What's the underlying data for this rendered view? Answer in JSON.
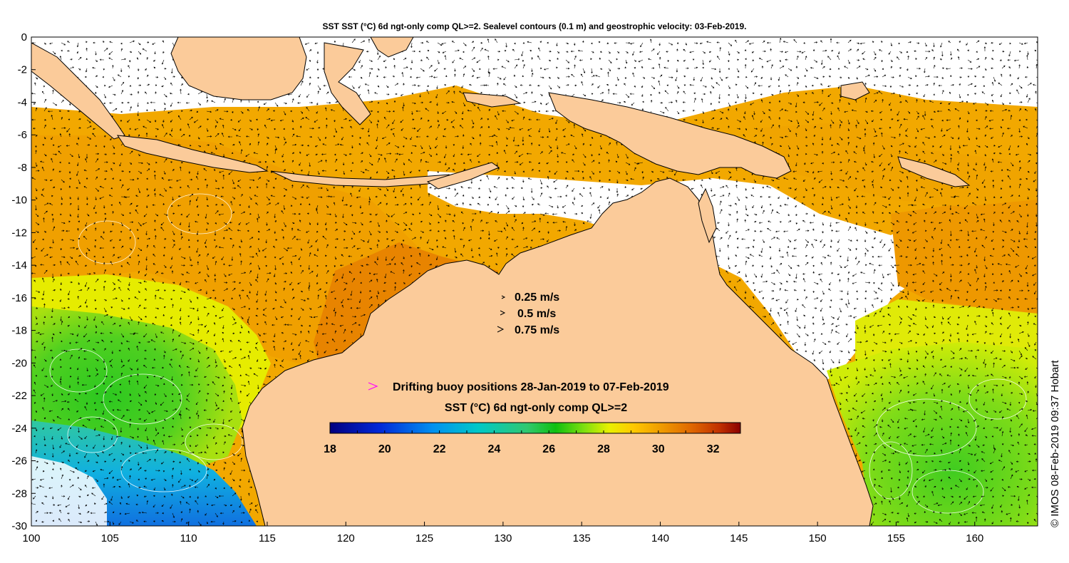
{
  "title": "SST SST (°C) 6d ngt-only comp QL>=2. Sealevel contours (0.1 m) and geostrophic velocity: 03-Feb-2019.",
  "credit": "© IMOS 08-Feb-2019 09:37 Hobart",
  "x_axis": {
    "min": 100,
    "max": 164,
    "ticks": [
      "100",
      "105",
      "110",
      "115",
      "120",
      "125",
      "130",
      "135",
      "140",
      "145",
      "150",
      "155",
      "160"
    ]
  },
  "y_axis": {
    "min": -30,
    "max": 0,
    "ticks": [
      "0",
      "-2",
      "-4",
      "-6",
      "-8",
      "-10",
      "-12",
      "-14",
      "-16",
      "-18",
      "-20",
      "-22",
      "-24",
      "-26",
      "-28",
      "-30"
    ]
  },
  "velocity_legend": [
    {
      "label": "0.25 m/s",
      "speed": 0.25
    },
    {
      "label": "0.5 m/s",
      "speed": 0.5
    },
    {
      "label": "0.75 m/s",
      "speed": 0.75
    }
  ],
  "buoy_label": "Drifting buoy positions 28-Jan-2019 to 07-Feb-2019",
  "colorbar": {
    "title": "SST (°C) 6d ngt-only comp QL>=2",
    "min": 18,
    "max": 33,
    "ticks": [
      "18",
      "20",
      "22",
      "24",
      "26",
      "28",
      "30",
      "32"
    ]
  },
  "colors": {
    "land": "#fbcb9a",
    "no_data": "#ffffff",
    "coast": "#000000",
    "buoy": "#ff00ff",
    "contour": "#ffffff"
  }
}
